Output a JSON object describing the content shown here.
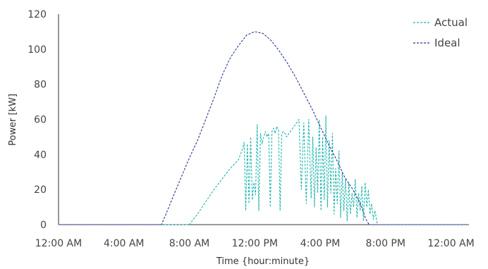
{
  "chart_data": {
    "type": "line",
    "title": "",
    "xlabel": "Time {hour:minute}",
    "ylabel": "Power [kW]",
    "xlim": [
      0,
      25.1
    ],
    "ylim": [
      0,
      120
    ],
    "x_ticks": [
      0,
      4,
      8,
      12,
      16,
      20,
      24
    ],
    "x_tick_labels": [
      "12:00 AM",
      "4:00 AM",
      "8:00 AM",
      "12:00 PM",
      "4:00 PM",
      "8:00 PM",
      "12:00 AM"
    ],
    "y_ticks": [
      0,
      20,
      40,
      60,
      80,
      100,
      120
    ],
    "y_tick_labels": [
      "0",
      "20",
      "40",
      "60",
      "80",
      "100",
      "120"
    ],
    "grid": false,
    "legend_position": "top-right",
    "series": [
      {
        "name": "Actual",
        "color": "#1fb5ad",
        "style": "dashed",
        "x": [
          0,
          8,
          8.5,
          9,
          9.5,
          10,
          10.5,
          11,
          11.25,
          11.35,
          11.45,
          11.55,
          11.65,
          11.75,
          11.85,
          11.95,
          12.05,
          12.15,
          12.25,
          12.35,
          12.45,
          12.55,
          12.65,
          12.75,
          12.85,
          12.95,
          13.05,
          13.15,
          13.25,
          13.35,
          13.45,
          13.55,
          13.65,
          13.75,
          13.85,
          13.95,
          14.1,
          14.25,
          14.4,
          14.55,
          14.7,
          14.85,
          15.0,
          15.15,
          15.3,
          15.45,
          15.55,
          15.65,
          15.75,
          15.85,
          15.95,
          16.05,
          16.15,
          16.25,
          16.35,
          16.45,
          16.55,
          16.65,
          16.75,
          16.85,
          16.95,
          17.05,
          17.15,
          17.25,
          17.35,
          17.45,
          17.55,
          17.65,
          17.75,
          17.85,
          17.95,
          18.05,
          18.15,
          18.25,
          18.35,
          18.45,
          18.55,
          18.65,
          18.75,
          18.85,
          18.95,
          19.05,
          19.15,
          19.25,
          19.35,
          19.5,
          25.1
        ],
        "y": [
          0,
          0,
          6,
          13,
          20,
          26,
          32,
          37,
          43,
          47,
          8,
          46,
          12,
          50,
          14,
          24,
          17,
          57,
          8,
          52,
          46,
          50,
          53,
          50,
          52,
          10,
          53,
          55,
          52,
          56,
          54,
          8,
          52,
          53,
          52,
          50,
          52,
          54,
          56,
          58,
          60,
          20,
          58,
          12,
          60,
          15,
          50,
          10,
          44,
          18,
          60,
          8,
          50,
          14,
          62,
          10,
          48,
          18,
          52,
          6,
          32,
          12,
          42,
          4,
          30,
          8,
          26,
          2,
          24,
          6,
          18,
          10,
          26,
          4,
          18,
          8,
          22,
          2,
          24,
          10,
          20,
          6,
          12,
          3,
          8,
          0,
          0
        ]
      },
      {
        "name": "Ideal",
        "color": "#283593",
        "style": "dashed",
        "x": [
          0,
          6.3,
          6.7,
          7.1,
          7.5,
          8.0,
          8.5,
          9.0,
          9.5,
          10.0,
          10.5,
          11.0,
          11.5,
          12.0,
          12.5,
          13.0,
          13.5,
          14.0,
          14.5,
          15.0,
          15.5,
          16.0,
          16.5,
          17.0,
          17.5,
          18.0,
          18.5,
          18.8,
          19.0,
          25.1
        ],
        "y": [
          0,
          0,
          9,
          18,
          27,
          38,
          48,
          60,
          72,
          85,
          95,
          102,
          108,
          110,
          109,
          105,
          99,
          92,
          84,
          75,
          66,
          56,
          46,
          37,
          27,
          20,
          11,
          3,
          0,
          0
        ]
      }
    ]
  }
}
